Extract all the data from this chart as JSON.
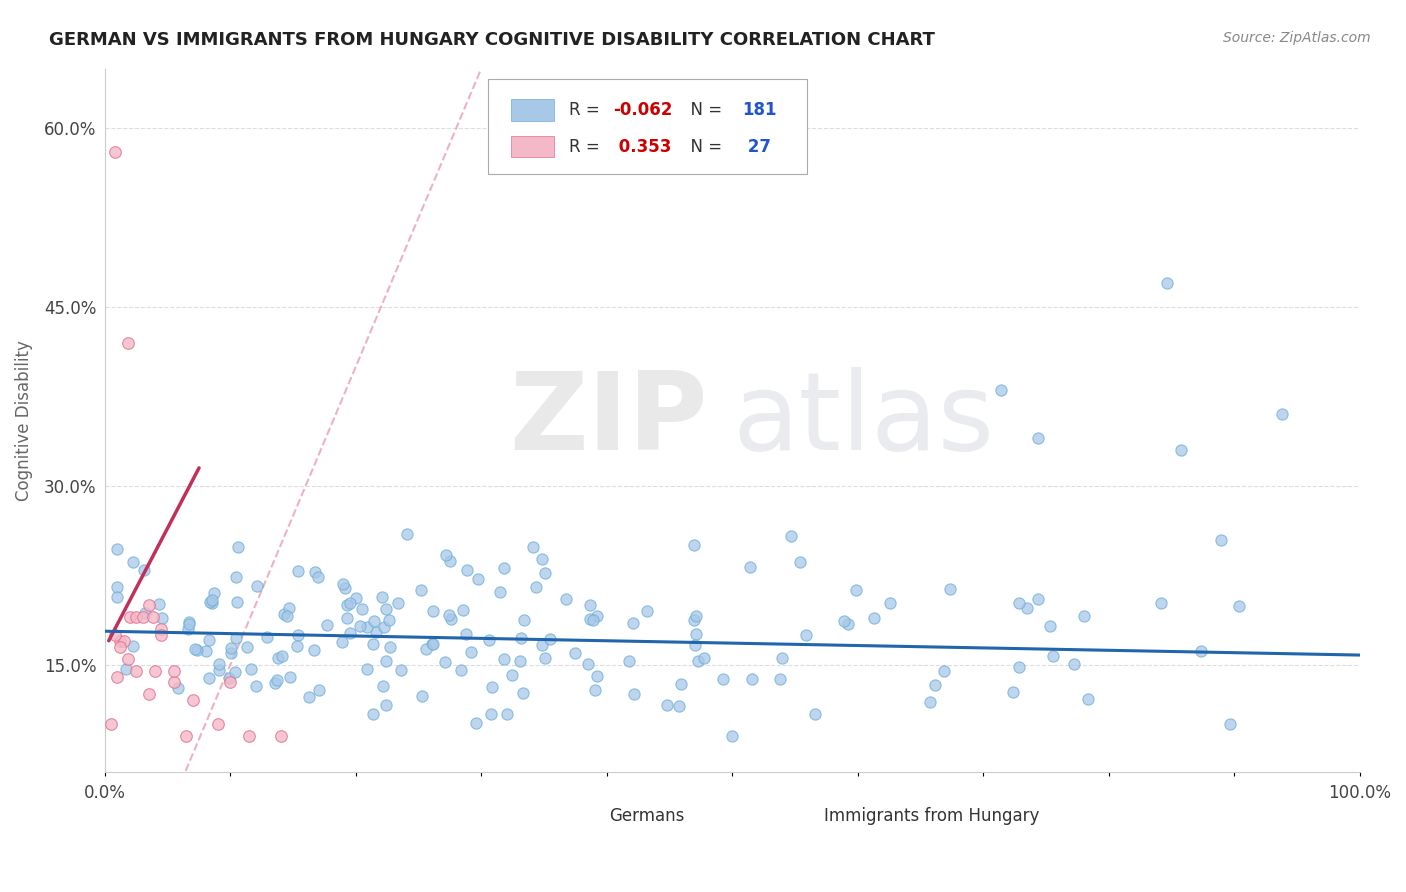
{
  "title": "GERMAN VS IMMIGRANTS FROM HUNGARY COGNITIVE DISABILITY CORRELATION CHART",
  "source": "Source: ZipAtlas.com",
  "ylabel": "Cognitive Disability",
  "xlim": [
    0.0,
    1.0
  ],
  "ylim": [
    0.06,
    0.65
  ],
  "yticks": [
    0.15,
    0.3,
    0.45,
    0.6
  ],
  "ytick_labels": [
    "15.0%",
    "30.0%",
    "45.0%",
    "60.0%"
  ],
  "xtick_labels": [
    "0.0%",
    "",
    "",
    "",
    "",
    "",
    "",
    "",
    "",
    "",
    "100.0%"
  ],
  "german_color": "#a8c8e8",
  "german_edge_color": "#6baed6",
  "hungary_color": "#f4b8c8",
  "hungary_edge_color": "#e07090",
  "german_trendline_color": "#2166ac",
  "hungary_trendline_color": "#c0305a",
  "hungary_dashed_color": "#e8a0b0",
  "watermark_zip_color": "#d8d8d8",
  "watermark_atlas_color": "#c8c8c8",
  "background_color": "#ffffff",
  "grid_color": "#dddddd",
  "german_r": -0.062,
  "german_n": 181,
  "hungary_r": 0.353,
  "hungary_n": 27,
  "legend_r_color": "#cc0000",
  "legend_n_color": "#2255cc",
  "legend_text_color": "#333333",
  "title_color": "#222222",
  "source_color": "#888888",
  "ylabel_color": "#666666"
}
